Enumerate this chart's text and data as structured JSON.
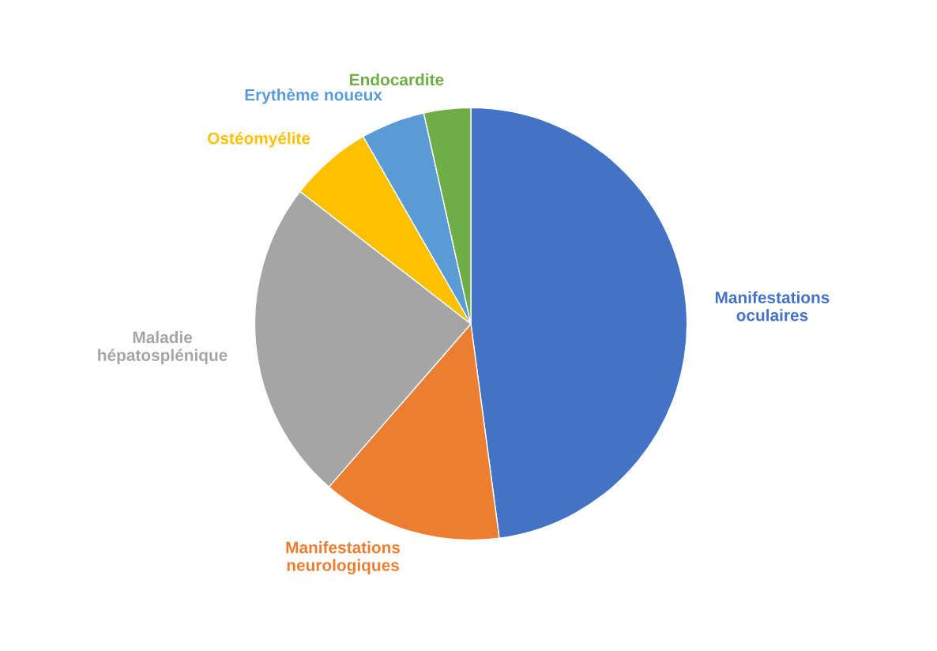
{
  "chart_data": {
    "type": "pie",
    "categories": [
      "Manifestations\noculaires",
      "Manifestations\nneurologiques",
      "Maladie\nhépatosplénique",
      "Ostéomyélite",
      "Erythème noueux",
      "Endocardite"
    ],
    "values": [
      47.9,
      13.5,
      24.1,
      6.2,
      4.8,
      3.5
    ],
    "colors": [
      "#4472c4",
      "#ed7d31",
      "#a5a5a5",
      "#ffc000",
      "#5b9bd5",
      "#70ad47"
    ]
  }
}
